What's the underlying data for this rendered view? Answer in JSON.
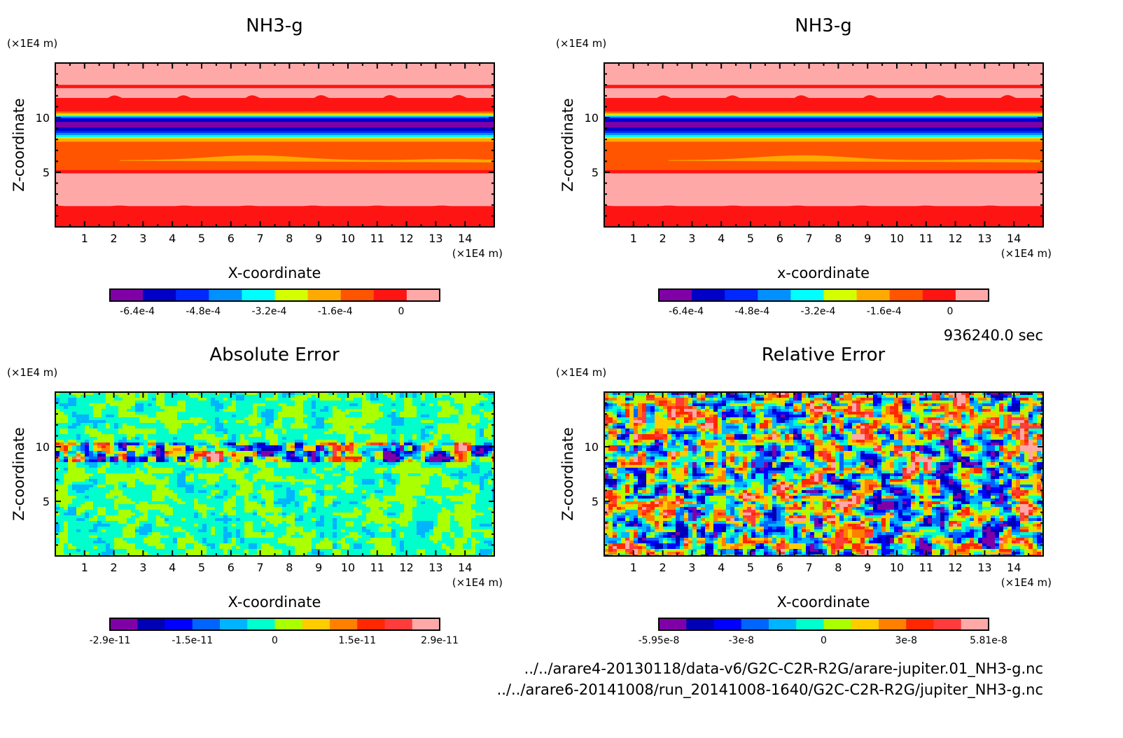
{
  "footer": {
    "time": "936240.0 sec",
    "file1": "../../arare4-20130118/data-v6/G2C-C2R-R2G/arare-jupiter.01_NH3-g.nc",
    "file2": "../../arare6-20141008/run_20141008-1640/G2C-C2R-R2G/jupiter_NH3-g.nc"
  },
  "chart_data": [
    {
      "type": "heatmap",
      "title": "NH3-g",
      "xlabel": "X-coordinate",
      "ylabel": "Z-coordinate",
      "xunit": "(×1E4 m)",
      "yunit": "(×1E4 m)",
      "xlim": [
        0,
        15
      ],
      "ylim": [
        0,
        15
      ],
      "xticks": [
        "1",
        "2",
        "3",
        "4",
        "5",
        "6",
        "7",
        "8",
        "9",
        "10",
        "11",
        "12",
        "13",
        "14"
      ],
      "yticks": [
        "5",
        "10"
      ],
      "colorbar": {
        "colors": [
          "#8000a8",
          "#0000c8",
          "#0028ff",
          "#0090ff",
          "#00ffff",
          "#d4ff00",
          "#ffaa00",
          "#ff5500",
          "#ff1414",
          "#ffa8a8"
        ],
        "labels": [
          "-6.4e-4",
          "-4.8e-4",
          "-3.2e-4",
          "-1.6e-4",
          "0"
        ]
      },
      "bands": [
        {
          "z": [
            13.0,
            15.0
          ],
          "level": 9
        },
        {
          "z": [
            12.7,
            13.0
          ],
          "level": 8
        },
        {
          "z": [
            11.8,
            12.7
          ],
          "level": 9
        },
        {
          "z": [
            10.6,
            11.8
          ],
          "level": 8
        },
        {
          "z": [
            10.45,
            10.6
          ],
          "level": 7
        },
        {
          "z": [
            10.3,
            10.45
          ],
          "level": 6
        },
        {
          "z": [
            10.2,
            10.3
          ],
          "level": 5
        },
        {
          "z": [
            10.1,
            10.2
          ],
          "level": 4
        },
        {
          "z": [
            10.0,
            10.1
          ],
          "level": 3
        },
        {
          "z": [
            9.9,
            10.0
          ],
          "level": 2
        },
        {
          "z": [
            9.6,
            9.9
          ],
          "level": 1
        },
        {
          "z": [
            9.1,
            9.6
          ],
          "level": 0
        },
        {
          "z": [
            8.8,
            9.1
          ],
          "level": 1
        },
        {
          "z": [
            8.6,
            8.8
          ],
          "level": 2
        },
        {
          "z": [
            8.4,
            8.6
          ],
          "level": 3
        },
        {
          "z": [
            8.2,
            8.4
          ],
          "level": 4
        },
        {
          "z": [
            8.1,
            8.2
          ],
          "level": 5
        },
        {
          "z": [
            7.8,
            8.1
          ],
          "level": 6
        },
        {
          "z": [
            5.2,
            7.8
          ],
          "level": 7
        },
        {
          "z": [
            4.9,
            5.2
          ],
          "level": 8
        },
        {
          "z": [
            1.9,
            4.9
          ],
          "level": 9
        },
        {
          "z": [
            0,
            1.9
          ],
          "level": 8
        }
      ]
    },
    {
      "type": "heatmap",
      "title": "NH3-g",
      "xlabel": "x-coordinate",
      "ylabel": "Z-coordinate",
      "xunit": "(×1E4 m)",
      "yunit": "(×1E4 m)",
      "xlim": [
        0,
        15
      ],
      "ylim": [
        0,
        15
      ],
      "xticks": [
        "1",
        "2",
        "3",
        "4",
        "5",
        "6",
        "7",
        "8",
        "9",
        "10",
        "11",
        "12",
        "13",
        "14"
      ],
      "yticks": [
        "5",
        "10"
      ],
      "colorbar": {
        "colors": [
          "#8000a8",
          "#0000c8",
          "#0028ff",
          "#0090ff",
          "#00ffff",
          "#d4ff00",
          "#ffaa00",
          "#ff5500",
          "#ff1414",
          "#ffa8a8"
        ],
        "labels": [
          "-6.4e-4",
          "-4.8e-4",
          "-3.2e-4",
          "-1.6e-4",
          "0"
        ]
      }
    },
    {
      "type": "heatmap",
      "title": "Absolute Error",
      "xlabel": "X-coordinate",
      "ylabel": "Z-coordinate",
      "xunit": "(×1E4 m)",
      "yunit": "(×1E4 m)",
      "xlim": [
        0,
        15
      ],
      "ylim": [
        0,
        15
      ],
      "xticks": [
        "1",
        "2",
        "3",
        "4",
        "5",
        "6",
        "7",
        "8",
        "9",
        "10",
        "11",
        "12",
        "13",
        "14"
      ],
      "yticks": [
        "5",
        "10"
      ],
      "colorbar": {
        "colors": [
          "#8000a8",
          "#0000b4",
          "#0000ff",
          "#0064ff",
          "#00b4ff",
          "#00ffcc",
          "#aaff00",
          "#ffcc00",
          "#ff8000",
          "#ff2800",
          "#ff3c3c",
          "#ffa8a8"
        ],
        "labels": [
          "-2.9e-11",
          "-1.5e-11",
          "0",
          "1.5e-11",
          "2.9e-11"
        ]
      }
    },
    {
      "type": "heatmap",
      "title": "Relative Error",
      "xlabel": "X-coordinate",
      "ylabel": "Z-coordinate",
      "xunit": "(×1E4 m)",
      "yunit": "(×1E4 m)",
      "xlim": [
        0,
        15
      ],
      "ylim": [
        0,
        15
      ],
      "xticks": [
        "1",
        "2",
        "3",
        "4",
        "5",
        "6",
        "7",
        "8",
        "9",
        "10",
        "11",
        "12",
        "13",
        "14"
      ],
      "yticks": [
        "5",
        "10"
      ],
      "colorbar": {
        "colors": [
          "#8000a8",
          "#0000b4",
          "#0000ff",
          "#0064ff",
          "#00b4ff",
          "#00ffcc",
          "#aaff00",
          "#ffcc00",
          "#ff8000",
          "#ff2800",
          "#ff3c3c",
          "#ffa8a8"
        ],
        "labels": [
          "-5.95e-8",
          "-3e-8",
          "0",
          "3e-8",
          "5.81e-8"
        ]
      }
    }
  ]
}
